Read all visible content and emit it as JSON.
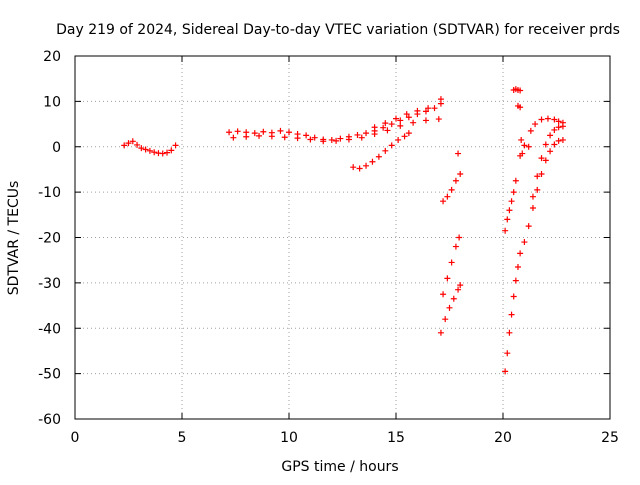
{
  "chart_data": {
    "type": "scatter",
    "title": "Day 219 of 2024, Sidereal Day-to-day VTEC variation (SDTVAR) for receiver prds",
    "xlabel": "GPS time / hours",
    "ylabel": "SDTVAR / TECUs",
    "xlim": [
      0,
      25
    ],
    "ylim": [
      -60,
      20
    ],
    "x_ticks": [
      0,
      5,
      10,
      15,
      20,
      25
    ],
    "y_ticks": [
      -60,
      -50,
      -40,
      -30,
      -20,
      -10,
      0,
      10,
      20
    ],
    "x_tick_labels": [
      "0",
      "5",
      "10",
      "15",
      "20",
      "25"
    ],
    "y_tick_labels": [
      "-60",
      "-50",
      "-40",
      "-30",
      "-20",
      "-10",
      "0",
      "10",
      "20"
    ],
    "grid": true,
    "marker": "+",
    "marker_color": "#ff0000",
    "series": [
      {
        "values": [
          [
            2.3,
            0.3
          ],
          [
            2.5,
            0.8
          ],
          [
            2.7,
            1.2
          ],
          [
            2.9,
            0.4
          ],
          [
            3.1,
            -0.3
          ],
          [
            3.3,
            -0.6
          ],
          [
            3.5,
            -0.9
          ],
          [
            3.7,
            -1.2
          ],
          [
            3.9,
            -1.4
          ],
          [
            4.1,
            -1.5
          ],
          [
            4.3,
            -1.3
          ],
          [
            4.5,
            -0.8
          ],
          [
            4.7,
            0.3
          ],
          [
            7.2,
            3.2
          ],
          [
            7.6,
            3.4
          ],
          [
            8.0,
            3.2
          ],
          [
            8.4,
            3.0
          ],
          [
            8.8,
            3.3
          ],
          [
            9.2,
            3.1
          ],
          [
            9.6,
            3.5
          ],
          [
            10.0,
            3.2
          ],
          [
            10.4,
            2.8
          ],
          [
            10.8,
            2.5
          ],
          [
            11.2,
            2.0
          ],
          [
            11.6,
            1.6
          ],
          [
            12.0,
            1.5
          ],
          [
            12.4,
            1.8
          ],
          [
            12.8,
            2.2
          ],
          [
            13.2,
            2.6
          ],
          [
            13.6,
            3.0
          ],
          [
            14.0,
            3.5
          ],
          [
            14.4,
            4.2
          ],
          [
            14.8,
            5.0
          ],
          [
            15.2,
            5.8
          ],
          [
            15.6,
            6.5
          ],
          [
            16.0,
            7.2
          ],
          [
            16.4,
            7.8
          ],
          [
            16.8,
            8.5
          ],
          [
            17.1,
            9.5
          ],
          [
            7.4,
            2.0
          ],
          [
            8.0,
            2.2
          ],
          [
            8.6,
            2.4
          ],
          [
            9.2,
            2.3
          ],
          [
            9.8,
            2.1
          ],
          [
            10.4,
            1.9
          ],
          [
            11.0,
            1.6
          ],
          [
            11.6,
            1.2
          ],
          [
            12.2,
            1.3
          ],
          [
            12.8,
            1.6
          ],
          [
            13.4,
            2.0
          ],
          [
            14.0,
            2.8
          ],
          [
            14.6,
            3.6
          ],
          [
            15.2,
            4.6
          ],
          [
            15.8,
            5.3
          ],
          [
            16.4,
            5.8
          ],
          [
            17.0,
            6.1
          ],
          [
            14.0,
            4.3
          ],
          [
            14.5,
            5.2
          ],
          [
            15.0,
            6.2
          ],
          [
            15.5,
            7.2
          ],
          [
            16.0,
            7.9
          ],
          [
            16.5,
            8.5
          ],
          [
            17.1,
            10.5
          ],
          [
            13.0,
            -4.5
          ],
          [
            13.3,
            -4.8
          ],
          [
            13.6,
            -4.2
          ],
          [
            13.9,
            -3.3
          ],
          [
            14.2,
            -2.2
          ],
          [
            14.5,
            -0.9
          ],
          [
            14.8,
            0.3
          ],
          [
            15.1,
            1.5
          ],
          [
            15.4,
            2.3
          ],
          [
            15.6,
            3.0
          ],
          [
            17.2,
            -12.0
          ],
          [
            17.4,
            -11.0
          ],
          [
            17.6,
            -9.5
          ],
          [
            17.8,
            -7.5
          ],
          [
            18.0,
            -6.0
          ],
          [
            17.9,
            -1.5
          ],
          [
            17.2,
            -32.5
          ],
          [
            17.4,
            -29.0
          ],
          [
            17.6,
            -25.5
          ],
          [
            17.8,
            -22.0
          ],
          [
            17.95,
            -20.0
          ],
          [
            17.1,
            -41.0
          ],
          [
            17.3,
            -38.0
          ],
          [
            17.5,
            -35.5
          ],
          [
            17.7,
            -33.5
          ],
          [
            17.9,
            -31.5
          ],
          [
            18.0,
            -30.5
          ],
          [
            20.1,
            -18.5
          ],
          [
            20.2,
            -16.0
          ],
          [
            20.3,
            -14.0
          ],
          [
            20.4,
            -12.0
          ],
          [
            20.5,
            -10.0
          ],
          [
            20.6,
            -7.5
          ],
          [
            20.5,
            12.5
          ],
          [
            20.6,
            12.7
          ],
          [
            20.7,
            12.5
          ],
          [
            20.8,
            12.4
          ],
          [
            20.7,
            9.0
          ],
          [
            20.8,
            8.7
          ],
          [
            20.85,
            1.5
          ],
          [
            21.0,
            0.3
          ],
          [
            21.2,
            0.0
          ],
          [
            20.9,
            -1.5
          ],
          [
            20.8,
            -2.0
          ],
          [
            20.1,
            -49.5
          ],
          [
            20.2,
            -45.5
          ],
          [
            20.3,
            -41.0
          ],
          [
            20.4,
            -37.0
          ],
          [
            20.5,
            -33.0
          ],
          [
            20.6,
            -29.5
          ],
          [
            20.7,
            -26.5
          ],
          [
            20.8,
            -23.5
          ],
          [
            21.0,
            -21.0
          ],
          [
            21.2,
            -17.5
          ],
          [
            21.4,
            -13.5
          ],
          [
            21.6,
            -9.5
          ],
          [
            21.8,
            -6.0
          ],
          [
            22.0,
            -3.0
          ],
          [
            22.2,
            -1.0
          ],
          [
            22.4,
            0.5
          ],
          [
            22.6,
            1.3
          ],
          [
            22.8,
            1.5
          ],
          [
            21.3,
            3.5
          ],
          [
            21.5,
            5.0
          ],
          [
            21.8,
            6.0
          ],
          [
            22.1,
            6.2
          ],
          [
            22.4,
            6.0
          ],
          [
            22.6,
            5.6
          ],
          [
            22.8,
            5.3
          ],
          [
            21.4,
            -11.0
          ],
          [
            21.6,
            -6.5
          ],
          [
            21.8,
            -2.5
          ],
          [
            22.0,
            0.5
          ],
          [
            22.2,
            2.5
          ],
          [
            22.4,
            3.7
          ],
          [
            22.6,
            4.3
          ],
          [
            22.8,
            4.5
          ]
        ]
      }
    ]
  }
}
